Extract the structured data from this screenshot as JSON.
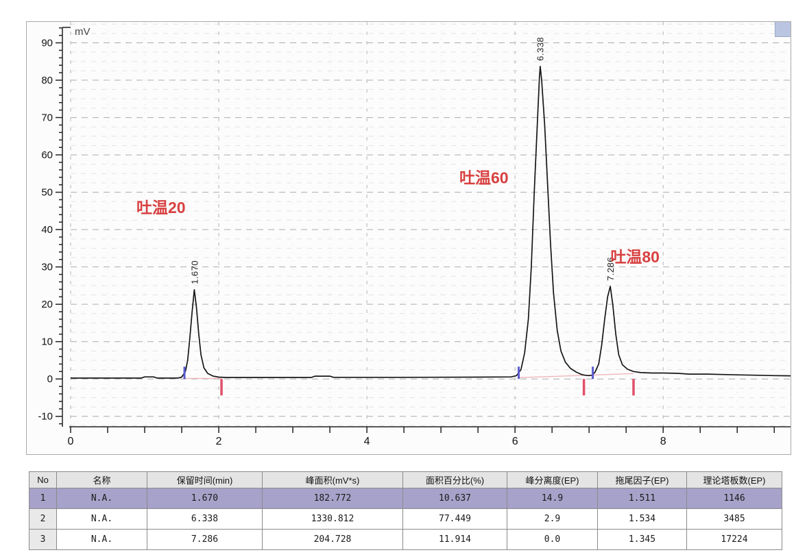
{
  "chart_data": {
    "type": "line",
    "title": "",
    "unit_label": "mV",
    "xlabel": "",
    "ylabel": "mV",
    "x_range": [
      0,
      9.72
    ],
    "y_range": [
      -12.8,
      95.6
    ],
    "x_tick_minor_step": 0.5,
    "x_labeled_ticks": [
      0,
      2,
      4,
      6,
      8
    ],
    "y_tick_minor_step": 2,
    "y_tick_major_step": 10,
    "y_labeled_min": -10,
    "y_labeled_max": 90,
    "grid": {
      "on": true,
      "h_minor_step": 2.5,
      "h_major_step": 10,
      "v_minor_step": 0.5,
      "v_major_step": 2
    },
    "trace_color": "#161616",
    "annotation_color": "#d84040",
    "peak_label_color": "#222222",
    "axis_color": "#222222",
    "baseline_color": "#efb6ba",
    "marker_start_color": "#5b5bd0",
    "marker_end_color": "#e0506a",
    "peaks": [
      {
        "time_label": "1.670",
        "retention_time": 1.67,
        "apex_mV": 23.9,
        "annotation": "吐温20",
        "annotation_t": 1.22,
        "annotation_mV": 45.9
      },
      {
        "time_label": "6.338",
        "retention_time": 6.338,
        "apex_mV": 83.7,
        "annotation": "吐温60",
        "annotation_t": 5.58,
        "annotation_mV": 53.9
      },
      {
        "time_label": "7.286",
        "retention_time": 7.286,
        "apex_mV": 24.8,
        "annotation": "吐温80",
        "annotation_t": 7.62,
        "annotation_mV": 32.7
      }
    ],
    "integration_markers": [
      {
        "t": 1.537,
        "type": "start"
      },
      {
        "t": 2.037,
        "type": "end"
      },
      {
        "t": 6.05,
        "type": "start"
      },
      {
        "t": 6.93,
        "type": "end"
      },
      {
        "t": 7.05,
        "type": "start"
      },
      {
        "t": 7.6,
        "type": "end"
      }
    ],
    "baseline_segments": [
      {
        "from": [
          1.537,
          0.15
        ],
        "to": [
          2.037,
          0.15
        ]
      },
      {
        "from": [
          6.05,
          0.35
        ],
        "to": [
          7.6,
          1.45
        ]
      }
    ],
    "trace": [
      [
        0,
        0.25
      ],
      [
        0.5,
        0.25
      ],
      [
        0.95,
        0.25
      ],
      [
        1.0,
        0.55
      ],
      [
        1.12,
        0.55
      ],
      [
        1.17,
        0.25
      ],
      [
        1.45,
        0.25
      ],
      [
        1.5,
        0.5
      ],
      [
        1.55,
        2
      ],
      [
        1.58,
        5
      ],
      [
        1.61,
        11
      ],
      [
        1.64,
        18
      ],
      [
        1.67,
        23.9
      ],
      [
        1.7,
        19
      ],
      [
        1.73,
        12
      ],
      [
        1.76,
        6.5
      ],
      [
        1.8,
        3
      ],
      [
        1.85,
        1.5
      ],
      [
        1.92,
        0.8
      ],
      [
        2.0,
        0.5
      ],
      [
        2.1,
        0.4
      ],
      [
        2.5,
        0.4
      ],
      [
        3.25,
        0.4
      ],
      [
        3.3,
        0.75
      ],
      [
        3.5,
        0.75
      ],
      [
        3.55,
        0.45
      ],
      [
        4.5,
        0.45
      ],
      [
        5.5,
        0.5
      ],
      [
        5.95,
        0.55
      ],
      [
        6.02,
        0.9
      ],
      [
        6.08,
        2.5
      ],
      [
        6.13,
        7
      ],
      [
        6.18,
        16
      ],
      [
        6.22,
        30
      ],
      [
        6.26,
        50
      ],
      [
        6.3,
        68
      ],
      [
        6.33,
        81
      ],
      [
        6.34,
        83.7
      ],
      [
        6.36,
        80
      ],
      [
        6.4,
        68
      ],
      [
        6.44,
        52
      ],
      [
        6.48,
        36
      ],
      [
        6.52,
        23
      ],
      [
        6.57,
        13
      ],
      [
        6.62,
        7.5
      ],
      [
        6.68,
        4.5
      ],
      [
        6.75,
        2.8
      ],
      [
        6.83,
        1.8
      ],
      [
        6.9,
        1.2
      ],
      [
        6.95,
        1.0
      ],
      [
        7.0,
        0.9
      ],
      [
        7.04,
        1.0
      ],
      [
        7.08,
        1.8
      ],
      [
        7.13,
        4
      ],
      [
        7.17,
        9
      ],
      [
        7.21,
        16
      ],
      [
        7.25,
        22
      ],
      [
        7.286,
        24.8
      ],
      [
        7.32,
        20
      ],
      [
        7.36,
        12
      ],
      [
        7.4,
        6.5
      ],
      [
        7.45,
        3.8
      ],
      [
        7.52,
        2.6
      ],
      [
        7.6,
        2.0
      ],
      [
        7.7,
        1.7
      ],
      [
        7.85,
        1.6
      ],
      [
        8.0,
        1.6
      ],
      [
        8.2,
        1.5
      ],
      [
        8.35,
        1.3
      ],
      [
        8.6,
        1.3
      ],
      [
        9.0,
        1.1
      ],
      [
        9.3,
        1.0
      ],
      [
        9.5,
        0.9
      ],
      [
        9.72,
        0.85
      ]
    ]
  },
  "table": {
    "headers": [
      "No",
      "名称",
      "保留时间(min)",
      "峰面积(mV*s)",
      "面积百分比(%)",
      "峰分离度(EP)",
      "拖尾因子(EP)",
      "理论塔板数(EP)"
    ],
    "rows": [
      [
        "1",
        "N.A.",
        "1.670",
        "182.772",
        "10.637",
        "14.9",
        "1.511",
        "1146"
      ],
      [
        "2",
        "N.A.",
        "6.338",
        "1330.812",
        "77.449",
        "2.9",
        "1.534",
        "3485"
      ],
      [
        "3",
        "N.A.",
        "7.286",
        "204.728",
        "11.914",
        "0.0",
        "1.345",
        "17224"
      ]
    ],
    "selected_row": 0,
    "selected_color": "#a7a2c9"
  }
}
